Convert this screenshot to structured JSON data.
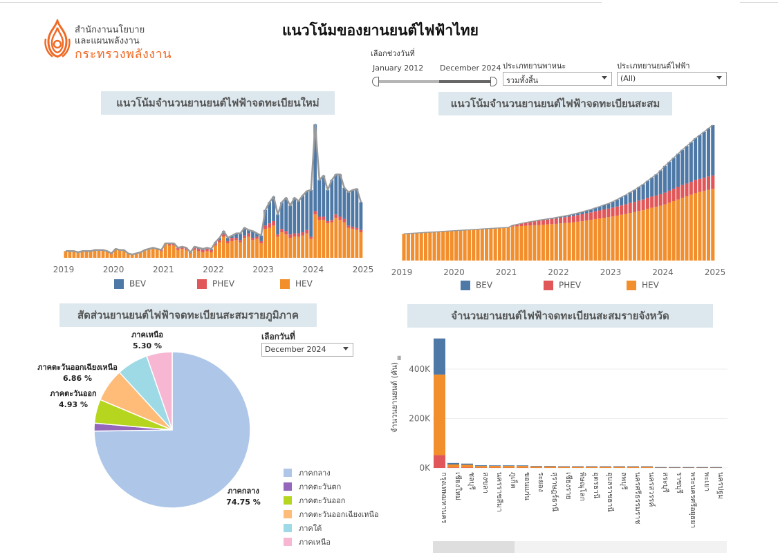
{
  "header": {
    "logo_line1": "สำนักงานนโยบาย",
    "logo_line2": "และแผนพลังงาน",
    "logo_line3": "กระทรวงพลังงาน",
    "title": "แนวโน้มของยานยนต์ไฟฟ้าไทย"
  },
  "filters": {
    "date_range_label": "เลือกช่วงวันที่",
    "date_start": "January 2012",
    "date_end": "December 2024",
    "vehicle_type_label": "ประเภทยานพาหนะ",
    "vehicle_type_value": "รวมทั้งสิ้น",
    "ev_type_label": "ประเภทยานยนต์ไฟฟ้า",
    "ev_type_value": "(All)",
    "pie_date_label": "เลือกวันที่",
    "pie_date_value": "December 2024"
  },
  "colors": {
    "BEV": "#4e79a7",
    "PHEV": "#e15759",
    "HEV": "#f28e2b",
    "total_line": "#9a9a9a",
    "panel_title_bg": "#dde8ee",
    "brand": "#ef6a25"
  },
  "legend": {
    "items": [
      {
        "key": "BEV",
        "label": "BEV"
      },
      {
        "key": "PHEV",
        "label": "PHEV"
      },
      {
        "key": "HEV",
        "label": "HEV"
      }
    ]
  },
  "chart_data": [
    {
      "id": "monthly",
      "type": "bar",
      "stacked": true,
      "title": "แนวโน้มจำนวนยานยนต์ไฟฟ้าจดทะเบียนใหม่",
      "x_ticks": [
        "2019",
        "2020",
        "2021",
        "2022",
        "2023",
        "2024",
        "2025"
      ],
      "x_range": [
        "2019-01",
        "2024-12"
      ],
      "y_unit": "relative index (axis hidden)",
      "series": [
        {
          "name": "HEV",
          "values": [
            6,
            6,
            6,
            5,
            6,
            6,
            6,
            7,
            7,
            7,
            6,
            3,
            8,
            7,
            7,
            4,
            3,
            4,
            5,
            7,
            8,
            9,
            8,
            6,
            13,
            11,
            11,
            7,
            8,
            7,
            4,
            7,
            6,
            5,
            6,
            5,
            11,
            14,
            19,
            13,
            15,
            16,
            14,
            18,
            19,
            16,
            17,
            13,
            26,
            27,
            29,
            19,
            23,
            21,
            18,
            19,
            19,
            20,
            22,
            17,
            39,
            34,
            34,
            31,
            32,
            36,
            34,
            32,
            27,
            26,
            25,
            23
          ]
        },
        {
          "name": "PHEV",
          "values": [
            0,
            0,
            0,
            0,
            0,
            0,
            0,
            0,
            0,
            0,
            0,
            1,
            0,
            0,
            0,
            0,
            0,
            0,
            0,
            0,
            0,
            0,
            0,
            1,
            0,
            2,
            2,
            2,
            2,
            2,
            1,
            2,
            2,
            2,
            2,
            2,
            2,
            2,
            2,
            2,
            3,
            2,
            2,
            2,
            3,
            2,
            2,
            2,
            3,
            4,
            4,
            2,
            3,
            3,
            3,
            3,
            3,
            3,
            3,
            2,
            3,
            3,
            3,
            2,
            2,
            3,
            3,
            3,
            2,
            2,
            2,
            2
          ]
        },
        {
          "name": "BEV",
          "values": [
            0,
            0,
            0,
            0,
            0,
            0,
            0,
            0,
            0,
            0,
            0,
            0,
            0,
            0,
            0,
            0,
            0,
            0,
            0,
            0,
            0,
            0,
            0,
            0,
            0,
            0,
            0,
            0,
            0,
            0,
            0,
            1,
            1,
            1,
            1,
            1,
            1,
            2,
            3,
            3,
            2,
            4,
            6,
            7,
            3,
            6,
            3,
            5,
            14,
            19,
            22,
            18,
            24,
            30,
            26,
            32,
            29,
            33,
            35,
            42,
            78,
            33,
            37,
            28,
            36,
            36,
            38,
            28,
            30,
            33,
            35,
            25
          ]
        }
      ]
    },
    {
      "id": "cumulative",
      "type": "bar",
      "stacked": true,
      "title": "แนวโน้มจำนวนยานยนต์ไฟฟ้าจดทะเบียนสะสม",
      "x_ticks": [
        "2019",
        "2020",
        "2021",
        "2022",
        "2023",
        "2024",
        "2025"
      ],
      "x_range": [
        "2019-01",
        "2024-12"
      ],
      "y_unit": "relative index (axis hidden)",
      "series": [
        {
          "name": "HEV",
          "values": [
            100,
            101,
            102,
            103,
            104,
            105,
            106,
            107,
            108,
            109,
            110,
            111,
            112,
            113,
            114,
            115,
            116,
            117,
            118,
            119,
            120,
            121,
            122,
            123,
            124,
            127,
            128,
            129,
            130,
            131,
            132,
            133,
            134,
            135,
            136,
            137,
            139,
            140,
            141,
            143,
            145,
            147,
            150,
            152,
            155,
            157,
            160,
            162,
            165,
            168,
            171,
            174,
            178,
            181,
            185,
            188,
            193,
            197,
            201,
            205,
            210,
            216,
            222,
            228,
            234,
            240,
            246,
            252,
            256,
            260,
            264,
            268
          ]
        },
        {
          "name": "PHEV",
          "values": [
            0,
            0,
            0,
            0,
            0,
            0,
            0,
            0,
            0,
            0,
            0,
            0,
            0,
            0,
            0,
            0,
            0,
            0,
            0,
            0,
            0,
            0,
            0,
            0,
            0,
            5,
            7,
            9,
            11,
            13,
            15,
            16,
            17,
            18,
            19,
            20,
            21,
            22,
            23,
            24,
            25,
            26,
            27,
            28,
            29,
            30,
            31,
            32,
            33,
            34,
            35,
            36,
            37,
            38,
            39,
            40,
            41,
            42,
            42,
            43,
            44,
            45,
            46,
            47,
            48,
            48,
            48,
            49,
            49,
            49,
            50,
            50
          ]
        },
        {
          "name": "BEV",
          "values": [
            0,
            0,
            0,
            0,
            0,
            0,
            0,
            0,
            0,
            0,
            0,
            0,
            0,
            0,
            0,
            0,
            0,
            0,
            0,
            0,
            0,
            0,
            0,
            0,
            0,
            0,
            0,
            1,
            1,
            1,
            1,
            2,
            2,
            3,
            3,
            4,
            4,
            5,
            6,
            7,
            8,
            9,
            10,
            11,
            13,
            15,
            17,
            19,
            22,
            26,
            31,
            35,
            40,
            45,
            51,
            57,
            64,
            71,
            79,
            89,
            100,
            108,
            116,
            124,
            132,
            140,
            148,
            156,
            164,
            172,
            180,
            188
          ]
        }
      ]
    },
    {
      "id": "region-share",
      "type": "pie",
      "title": "สัดส่วนยานยนต์ไฟฟ้าจดทะเบียนสะสมรายภูมิภาค",
      "slices": [
        {
          "label": "ภาคกลาง",
          "value": 74.75,
          "color": "#aec7e8",
          "show_label": true,
          "display": "74.75 %"
        },
        {
          "label": "ภาคตะวันตก",
          "value": 1.65,
          "color": "#9467bd",
          "show_label": false,
          "display": ""
        },
        {
          "label": "ภาคตะวันออก",
          "value": 4.93,
          "color": "#b5d51e",
          "show_label": true,
          "display": "4.93 %"
        },
        {
          "label": "ภาคตะวันออกเฉียงเหนือ",
          "value": 6.86,
          "color": "#ffbb78",
          "show_label": true,
          "display": "6.86 %"
        },
        {
          "label": "ภาคใต้",
          "value": 6.51,
          "color": "#9edae5",
          "show_label": false,
          "display": ""
        },
        {
          "label": "ภาคเหนือ",
          "value": 5.3,
          "color": "#f7b6d2",
          "show_label": true,
          "display": "5.30 %"
        }
      ]
    },
    {
      "id": "province",
      "type": "bar",
      "stacked": true,
      "title": "จำนวนยานยนต์ไฟฟ้าจดทะเบียนสะสมรายจังหวัด",
      "ylabel": "จำนวนยานยนต์ (คัน)",
      "y_ticks": [
        "0K",
        "200K",
        "400K"
      ],
      "ylim": [
        0,
        540000
      ],
      "categories": [
        "กรุงเทพมหานคร",
        "เชียงใหม่",
        "ชลบุรี",
        "สงขลา",
        "นครราชสีมา",
        "ภูเก็ต",
        "ขอนแก่น",
        "ระยอง",
        "สุราษฎร์ธานี",
        "เชียงราย",
        "พิษณุโลก",
        "อุดรธานี",
        "อุบลราชธานี",
        "ลพบุรี",
        "นครศรีธรรมราช",
        "นครสวรรค์",
        "สระบุรี",
        "ราชบุรี",
        "พระนครศรีอยุธยา",
        "พะเยา",
        "นครปฐม"
      ],
      "series": [
        {
          "name": "PHEV",
          "values": [
            52000,
            2000,
            1500,
            800,
            700,
            700,
            600,
            500,
            500,
            400,
            400,
            400,
            400,
            400,
            300,
            300,
            200,
            200,
            200,
            200,
            200
          ]
        },
        {
          "name": "HEV",
          "values": [
            326000,
            12000,
            11000,
            7000,
            7500,
            7500,
            7500,
            5500,
            5500,
            4500,
            4500,
            4500,
            4500,
            4500,
            4500,
            4500,
            1000,
            1000,
            1000,
            1000,
            1000
          ]
        },
        {
          "name": "BEV",
          "values": [
            146000,
            6000,
            5000,
            3000,
            1500,
            1500,
            1500,
            1500,
            1500,
            1000,
            1000,
            1000,
            1000,
            1000,
            1000,
            1000,
            1500,
            1500,
            1500,
            1500,
            1500
          ]
        }
      ]
    }
  ]
}
